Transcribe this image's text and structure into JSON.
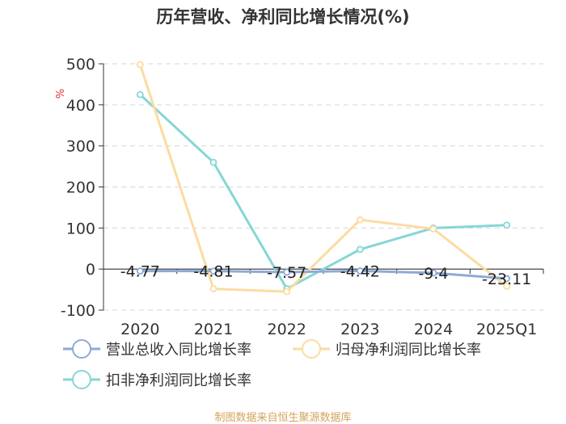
{
  "chart_data": {
    "type": "line",
    "title": "历年营收、净利同比增长情况(%)",
    "ylabel": "%",
    "categories": [
      "2020",
      "2021",
      "2022",
      "2023",
      "2024",
      "2025Q1"
    ],
    "ylim": [
      -100,
      500
    ],
    "yticks": [
      -100,
      0,
      100,
      200,
      300,
      400,
      500
    ],
    "grid": true,
    "legend_position": "bottom",
    "series": [
      {
        "name": "营业总收入同比增长率",
        "color": "#8eaad6",
        "values": [
          -4.77,
          -4.81,
          -7.57,
          -4.42,
          -9.4,
          -23.11
        ],
        "data_labels": [
          "-4.77",
          "-4.81",
          "-7.57",
          "-4.42",
          "-9.4",
          "-23.11"
        ]
      },
      {
        "name": "归母净利润同比增长率",
        "color": "#fbdca0",
        "values": [
          498,
          -48,
          -55,
          120,
          98,
          -42
        ]
      },
      {
        "name": "扣非净利润同比增长率",
        "color": "#86d6d6",
        "values": [
          425,
          260,
          -48,
          48,
          100,
          107
        ]
      }
    ]
  },
  "source": "制图数据来自恒生聚源数据库"
}
